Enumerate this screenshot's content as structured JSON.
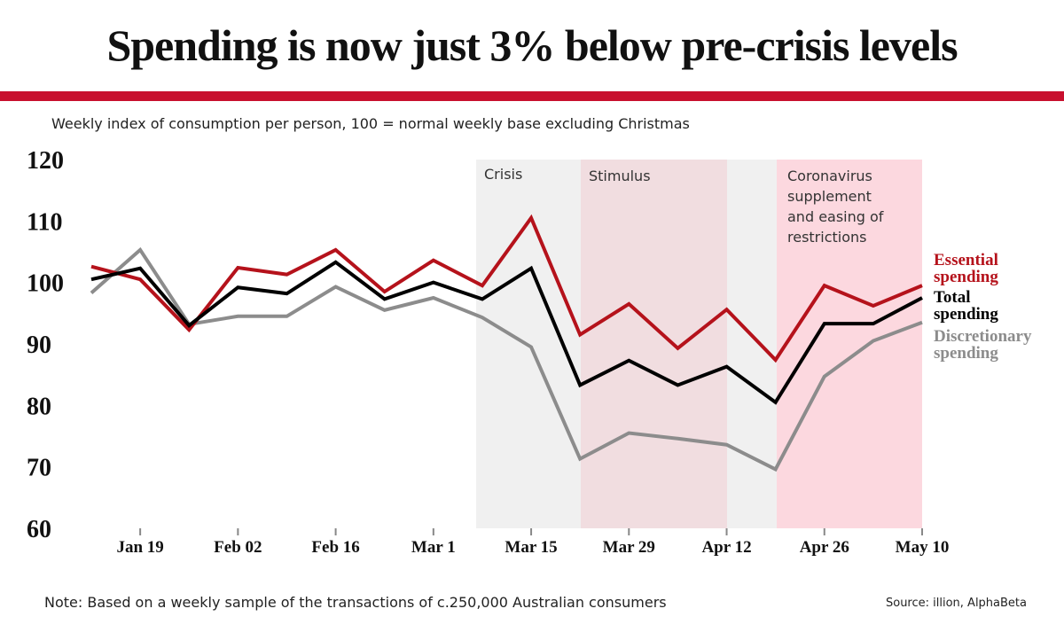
{
  "chart_data": {
    "type": "line",
    "title": "Spending is now just 3% below pre-crisis levels",
    "subtitle": "Weekly index of consumption per person, 100 = normal weekly base excluding Christmas",
    "note": "Note: Based on a weekly sample of the transactions of c.250,000 Australian consumers",
    "source": "Source: illion, AlphaBeta",
    "annotations": [
      "Crisis",
      "Stimulus",
      "Coronavirus supplement and easing of restrictions"
    ],
    "categories": [
      null,
      "Jan 19",
      null,
      "Feb 02",
      null,
      "Feb 16",
      null,
      "Mar 1",
      null,
      "Mar 15",
      null,
      "Mar 29",
      null,
      "Apr 12",
      null,
      "Apr 26",
      null,
      "May 10"
    ],
    "series": [
      {
        "name": "Essential spending",
        "color": "#b5121b",
        "values": [
          102.6,
          100.5,
          92.3,
          102.4,
          101.3,
          105.3,
          98.5,
          103.6,
          99.5,
          110.5,
          91.5,
          96.5,
          89.3,
          95.6,
          87.4,
          99.5,
          96.2,
          99.5
        ]
      },
      {
        "name": "Total spending",
        "color": "#000000",
        "values": [
          100.5,
          102.3,
          93,
          99.2,
          98.2,
          103.3,
          97.3,
          100,
          97.3,
          102.3,
          83.3,
          87.3,
          83.3,
          86.3,
          80.5,
          93.3,
          93.3,
          97.5
        ]
      },
      {
        "name": "Discretionary spending",
        "color": "#8c8c8c",
        "values": [
          98.3,
          105.3,
          93.2,
          94.5,
          94.5,
          99.3,
          95.5,
          97.5,
          94.3,
          89.5,
          71.3,
          75.5,
          74.6,
          73.6,
          69.6,
          84.7,
          90.5,
          93.5
        ]
      }
    ],
    "ylim": [
      60,
      120
    ],
    "yticks": [
      60,
      70,
      80,
      90,
      100,
      110,
      120
    ],
    "grid": false
  }
}
